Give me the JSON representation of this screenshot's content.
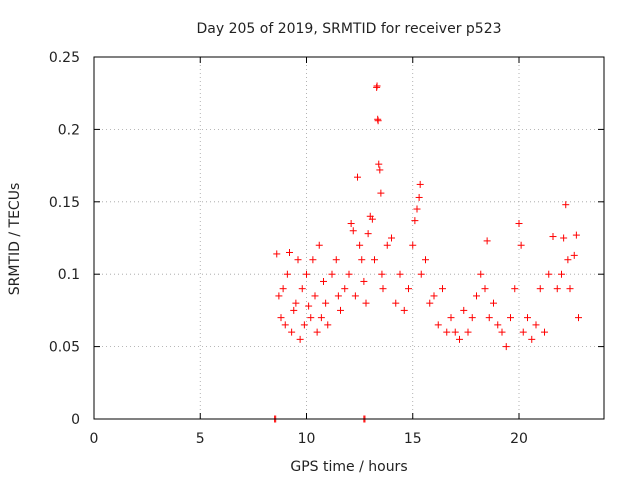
{
  "chart_data": {
    "type": "scatter",
    "title": "Day 205 of 2019, SRMTID for receiver p523",
    "xlabel": "GPS time / hours",
    "ylabel": "SRMTID / TECUs",
    "xlim": [
      0,
      24
    ],
    "ylim": [
      0,
      0.25
    ],
    "xticks": [
      0,
      5,
      10,
      15,
      20
    ],
    "xtick_labels": [
      "0",
      "5",
      "10",
      "15",
      "20"
    ],
    "yticks": [
      0,
      0.05,
      0.1,
      0.15,
      0.2,
      0.25
    ],
    "ytick_labels": [
      "0",
      "0.05",
      "0.1",
      "0.15",
      "0.2",
      "0.25"
    ],
    "grid": true,
    "marker": "+",
    "series": [
      {
        "name": "SRMTID",
        "color": "#ff0000",
        "points": [
          [
            8.5,
            0.0
          ],
          [
            8.55,
            0.0
          ],
          [
            12.7,
            0.0
          ],
          [
            12.75,
            0.0
          ],
          [
            8.6,
            0.114
          ],
          [
            8.7,
            0.085
          ],
          [
            8.8,
            0.07
          ],
          [
            8.9,
            0.09
          ],
          [
            9.0,
            0.065
          ],
          [
            9.1,
            0.1
          ],
          [
            9.2,
            0.115
          ],
          [
            9.3,
            0.06
          ],
          [
            9.4,
            0.075
          ],
          [
            9.5,
            0.08
          ],
          [
            9.6,
            0.11
          ],
          [
            9.7,
            0.055
          ],
          [
            9.8,
            0.09
          ],
          [
            9.9,
            0.065
          ],
          [
            10.0,
            0.1
          ],
          [
            10.1,
            0.078
          ],
          [
            10.2,
            0.07
          ],
          [
            10.3,
            0.11
          ],
          [
            10.4,
            0.085
          ],
          [
            10.5,
            0.06
          ],
          [
            10.6,
            0.12
          ],
          [
            10.7,
            0.07
          ],
          [
            10.8,
            0.095
          ],
          [
            10.9,
            0.08
          ],
          [
            11.0,
            0.065
          ],
          [
            11.2,
            0.1
          ],
          [
            11.4,
            0.11
          ],
          [
            11.5,
            0.085
          ],
          [
            11.6,
            0.075
          ],
          [
            11.8,
            0.09
          ],
          [
            12.0,
            0.1
          ],
          [
            12.1,
            0.135
          ],
          [
            12.2,
            0.13
          ],
          [
            12.3,
            0.085
          ],
          [
            12.4,
            0.167
          ],
          [
            12.5,
            0.12
          ],
          [
            12.6,
            0.11
          ],
          [
            12.7,
            0.095
          ],
          [
            12.8,
            0.08
          ],
          [
            12.9,
            0.128
          ],
          [
            13.0,
            0.14
          ],
          [
            13.1,
            0.138
          ],
          [
            13.2,
            0.11
          ],
          [
            13.3,
            0.229
          ],
          [
            13.32,
            0.23
          ],
          [
            13.35,
            0.207
          ],
          [
            13.37,
            0.206
          ],
          [
            13.4,
            0.176
          ],
          [
            13.45,
            0.172
          ],
          [
            13.5,
            0.156
          ],
          [
            13.55,
            0.1
          ],
          [
            13.6,
            0.09
          ],
          [
            13.8,
            0.12
          ],
          [
            14.0,
            0.125
          ],
          [
            14.2,
            0.08
          ],
          [
            14.4,
            0.1
          ],
          [
            14.6,
            0.075
          ],
          [
            14.8,
            0.09
          ],
          [
            15.0,
            0.12
          ],
          [
            15.1,
            0.137
          ],
          [
            15.2,
            0.145
          ],
          [
            15.3,
            0.153
          ],
          [
            15.35,
            0.162
          ],
          [
            15.4,
            0.1
          ],
          [
            15.6,
            0.11
          ],
          [
            15.8,
            0.08
          ],
          [
            16.0,
            0.085
          ],
          [
            16.2,
            0.065
          ],
          [
            16.4,
            0.09
          ],
          [
            16.6,
            0.06
          ],
          [
            16.8,
            0.07
          ],
          [
            17.0,
            0.06
          ],
          [
            17.2,
            0.055
          ],
          [
            17.4,
            0.075
          ],
          [
            17.6,
            0.06
          ],
          [
            17.8,
            0.07
          ],
          [
            18.0,
            0.085
          ],
          [
            18.2,
            0.1
          ],
          [
            18.4,
            0.09
          ],
          [
            18.5,
            0.123
          ],
          [
            18.6,
            0.07
          ],
          [
            18.8,
            0.08
          ],
          [
            19.0,
            0.065
          ],
          [
            19.2,
            0.06
          ],
          [
            19.4,
            0.05
          ],
          [
            19.6,
            0.07
          ],
          [
            19.8,
            0.09
          ],
          [
            20.0,
            0.135
          ],
          [
            20.1,
            0.12
          ],
          [
            20.2,
            0.06
          ],
          [
            20.4,
            0.07
          ],
          [
            20.6,
            0.055
          ],
          [
            20.8,
            0.065
          ],
          [
            21.0,
            0.09
          ],
          [
            21.2,
            0.06
          ],
          [
            21.4,
            0.1
          ],
          [
            21.6,
            0.126
          ],
          [
            21.8,
            0.09
          ],
          [
            22.0,
            0.1
          ],
          [
            22.1,
            0.125
          ],
          [
            22.2,
            0.148
          ],
          [
            22.3,
            0.11
          ],
          [
            22.4,
            0.09
          ],
          [
            22.6,
            0.113
          ],
          [
            22.7,
            0.127
          ],
          [
            22.8,
            0.07
          ]
        ]
      }
    ]
  }
}
